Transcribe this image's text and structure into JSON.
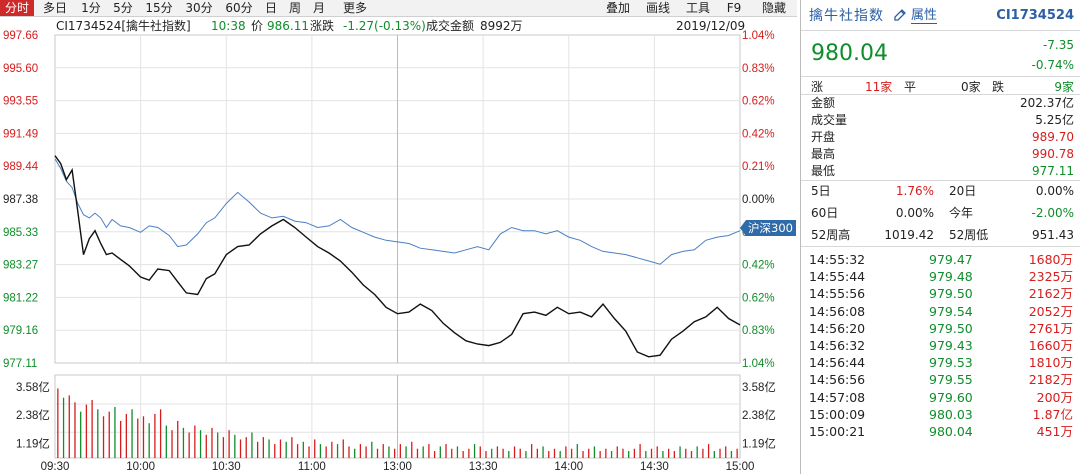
{
  "toolbar": {
    "tabs": [
      "分时",
      "多日",
      "1分",
      "5分",
      "15分",
      "30分",
      "60分",
      "日",
      "周",
      "月",
      "更多"
    ],
    "active": 0,
    "right": [
      "叠加",
      "画线",
      "工具",
      "F9",
      "隐藏"
    ]
  },
  "info": {
    "code": "CI1734524[擒牛社指数]",
    "time": "10:38",
    "price_label": "价",
    "price": "986.11",
    "change_label": "涨跌",
    "change": "-1.27(-0.13%)",
    "amount_label": "成交金额",
    "amount": "8992万",
    "date": "2019/12/09"
  },
  "badge": "沪深300",
  "colors": {
    "red": "#d61d1d",
    "green": "#0f8d2a",
    "blue": "#4b7fc4",
    "active": "#cf2a2a"
  },
  "chart_data": {
    "type": "line",
    "title": "",
    "y_left_ticks": [
      "997.66",
      "995.60",
      "993.55",
      "991.49",
      "989.44",
      "987.38",
      "985.33",
      "983.27",
      "981.22",
      "979.16",
      "977.11"
    ],
    "y_right_ticks": [
      "1.04%",
      "0.83%",
      "0.62%",
      "0.42%",
      "0.21%",
      "0.00%",
      "0.21%",
      "0.42%",
      "0.62%",
      "0.83%",
      "1.04%"
    ],
    "ylim": [
      977.11,
      997.66
    ],
    "x_ticks": [
      "09:30",
      "10:00",
      "10:30",
      "11:00",
      "13:00",
      "13:30",
      "14:00",
      "14:30",
      "15:00"
    ],
    "volume_ticks": [
      "3.58亿",
      "2.38亿",
      "1.19亿"
    ],
    "series": [
      {
        "x": [
          0,
          2,
          4,
          6,
          8,
          10,
          12,
          14,
          16,
          18,
          20,
          23,
          26,
          30,
          33,
          36,
          40,
          43,
          46,
          50,
          53,
          56,
          60,
          64,
          68,
          72,
          76,
          80,
          84,
          88,
          92,
          96,
          100,
          104,
          108,
          112,
          116,
          120,
          124,
          128,
          132,
          136,
          140,
          144,
          148,
          152,
          156,
          160,
          164,
          168,
          172,
          176,
          180,
          184,
          188,
          192,
          196,
          200,
          204,
          208,
          212,
          216,
          220,
          224,
          228,
          232,
          236,
          240
        ],
        "values": [
          990.1,
          989.6,
          988.6,
          989.2,
          986.6,
          983.9,
          984.9,
          985.4,
          984.6,
          983.9,
          984.0,
          983.6,
          983.2,
          982.5,
          982.3,
          983.0,
          982.9,
          982.2,
          981.5,
          981.4,
          982.4,
          982.7,
          983.9,
          984.4,
          984.5,
          985.2,
          985.7,
          986.1,
          985.6,
          985.0,
          984.4,
          984.0,
          983.5,
          982.8,
          982.0,
          981.4,
          980.6,
          980.2,
          980.3,
          980.8,
          980.4,
          979.6,
          979.0,
          978.5,
          978.3,
          978.2,
          978.4,
          978.9,
          980.2,
          980.3,
          980.1,
          980.6,
          980.2,
          980.3,
          980.0,
          980.8,
          979.9,
          979.1,
          977.8,
          977.5,
          977.6,
          978.6,
          979.1,
          979.7,
          980.0,
          980.6,
          979.9,
          979.5
        ]
      },
      {
        "name": "沪深300",
        "x": [
          0,
          2,
          4,
          6,
          8,
          10,
          12,
          14,
          16,
          18,
          20,
          23,
          26,
          30,
          33,
          36,
          40,
          43,
          46,
          50,
          53,
          56,
          60,
          64,
          68,
          72,
          76,
          80,
          84,
          88,
          92,
          96,
          100,
          104,
          108,
          112,
          116,
          120,
          124,
          128,
          132,
          136,
          140,
          144,
          148,
          152,
          156,
          160,
          164,
          168,
          172,
          176,
          180,
          184,
          188,
          192,
          196,
          200,
          204,
          208,
          212,
          216,
          220,
          224,
          228,
          232,
          236,
          240
        ],
        "values": [
          989.9,
          989.3,
          988.5,
          988.1,
          987.1,
          986.4,
          986.2,
          986.5,
          986.2,
          985.6,
          986.1,
          985.7,
          985.6,
          985.3,
          985.7,
          985.6,
          985.1,
          984.4,
          984.5,
          985.2,
          985.9,
          986.2,
          987.1,
          987.8,
          987.2,
          986.5,
          986.2,
          986.3,
          986.0,
          985.9,
          985.6,
          985.7,
          986.1,
          985.6,
          985.3,
          985.0,
          984.8,
          984.7,
          984.6,
          984.3,
          984.2,
          984.1,
          984.0,
          984.2,
          984.4,
          984.2,
          985.2,
          985.6,
          985.4,
          985.4,
          985.2,
          985.4,
          985.0,
          984.8,
          984.4,
          984.1,
          984.0,
          983.9,
          983.7,
          983.5,
          983.3,
          983.9,
          984.1,
          984.2,
          984.8,
          985.0,
          985.1,
          985.4
        ]
      }
    ],
    "volume": [
      3.0,
      2.6,
      2.7,
      2.4,
      2.0,
      2.3,
      2.5,
      2.1,
      1.8,
      2.0,
      2.2,
      1.6,
      1.9,
      2.1,
      1.7,
      1.8,
      1.5,
      1.9,
      2.1,
      1.4,
      1.2,
      1.6,
      1.3,
      1.1,
      1.4,
      1.2,
      1.0,
      1.3,
      1.1,
      0.9,
      1.2,
      1.0,
      0.8,
      0.9,
      1.1,
      0.7,
      0.9,
      0.8,
      0.6,
      0.8,
      0.7,
      0.9,
      0.6,
      0.7,
      0.5,
      0.8,
      0.6,
      0.5,
      0.7,
      0.6,
      0.8,
      0.5,
      0.4,
      0.6,
      0.5,
      0.7,
      0.4,
      0.6,
      0.5,
      0.4,
      0.6,
      0.5,
      0.7,
      0.4,
      0.5,
      0.6,
      0.3,
      0.5,
      0.6,
      0.4,
      0.5,
      0.3,
      0.4,
      0.6,
      0.5,
      0.3,
      0.4,
      0.5,
      0.4,
      0.3,
      0.5,
      0.4,
      0.3,
      0.6,
      0.4,
      0.5,
      0.3,
      0.4,
      0.3,
      0.5,
      0.4,
      0.6,
      0.3,
      0.4,
      0.5,
      0.3,
      0.4,
      0.3,
      0.5,
      0.4,
      0.3,
      0.4,
      0.6,
      0.3,
      0.4,
      0.5,
      0.3,
      0.4,
      0.3,
      0.5,
      0.4,
      0.3,
      0.5,
      0.4,
      0.6,
      0.3,
      0.4,
      0.5,
      0.3,
      0.4
    ]
  },
  "panel": {
    "name": "擒牛社指数",
    "attr": "属性",
    "code": "CI1734524",
    "price": "980.04",
    "change": "-7.35",
    "change_pct": "-0.74%",
    "up_label": "涨",
    "up": "11家",
    "flat_label": "平",
    "flat": "0家",
    "down_label": "跌",
    "down": "9家",
    "rows": [
      [
        "金额",
        "202.37亿"
      ],
      [
        "成交量",
        "5.25亿"
      ],
      [
        "开盘",
        "989.70"
      ],
      [
        "最高",
        "990.78"
      ],
      [
        "最低",
        "977.11"
      ]
    ],
    "perf": [
      [
        "5日",
        "1.76%",
        "20日",
        "0.00%"
      ],
      [
        "60日",
        "0.00%",
        "今年",
        "-2.00%"
      ],
      [
        "52周高",
        "1019.42",
        "52周低",
        "951.43"
      ]
    ],
    "trades": [
      [
        "14:55:32",
        "979.47",
        "1680万"
      ],
      [
        "14:55:44",
        "979.48",
        "2325万"
      ],
      [
        "14:55:56",
        "979.50",
        "2162万"
      ],
      [
        "14:56:08",
        "979.54",
        "2052万"
      ],
      [
        "14:56:20",
        "979.50",
        "2761万"
      ],
      [
        "14:56:32",
        "979.43",
        "1660万"
      ],
      [
        "14:56:44",
        "979.53",
        "1810万"
      ],
      [
        "14:56:56",
        "979.55",
        "2182万"
      ],
      [
        "14:57:08",
        "979.60",
        "200万"
      ],
      [
        "15:00:09",
        "980.03",
        "1.87亿"
      ],
      [
        "15:00:21",
        "980.04",
        "451万"
      ]
    ]
  }
}
